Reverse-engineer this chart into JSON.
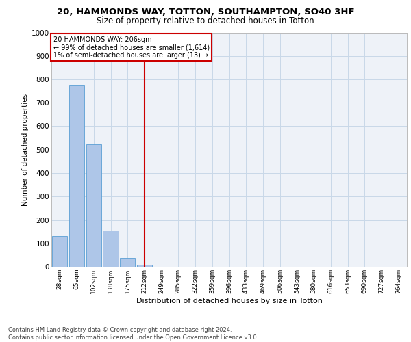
{
  "title1": "20, HAMMONDS WAY, TOTTON, SOUTHAMPTON, SO40 3HF",
  "title2": "Size of property relative to detached houses in Totton",
  "xlabel": "Distribution of detached houses by size in Totton",
  "ylabel": "Number of detached properties",
  "footer": "Contains HM Land Registry data © Crown copyright and database right 2024.\nContains public sector information licensed under the Open Government Licence v3.0.",
  "annotation_line1": "20 HAMMONDS WAY: 206sqm",
  "annotation_line2": "← 99% of detached houses are smaller (1,614)",
  "annotation_line3": "1% of semi-detached houses are larger (13) →",
  "bar_categories": [
    "28sqm",
    "65sqm",
    "102sqm",
    "138sqm",
    "175sqm",
    "212sqm",
    "249sqm",
    "285sqm",
    "322sqm",
    "359sqm",
    "396sqm",
    "433sqm",
    "469sqm",
    "506sqm",
    "543sqm",
    "580sqm",
    "616sqm",
    "653sqm",
    "690sqm",
    "727sqm",
    "764sqm"
  ],
  "bar_heights": [
    132,
    778,
    524,
    156,
    37,
    10,
    0,
    0,
    0,
    0,
    0,
    0,
    0,
    0,
    0,
    0,
    0,
    0,
    0,
    0,
    0
  ],
  "bar_color": "#aec6e8",
  "bar_edge_color": "#5a9fd4",
  "grid_color": "#c8d8e8",
  "vline_color": "#cc0000",
  "box_edge_color": "#cc0000",
  "ylim": [
    0,
    1000
  ],
  "yticks": [
    0,
    100,
    200,
    300,
    400,
    500,
    600,
    700,
    800,
    900,
    1000
  ],
  "background_color": "#eef2f8"
}
